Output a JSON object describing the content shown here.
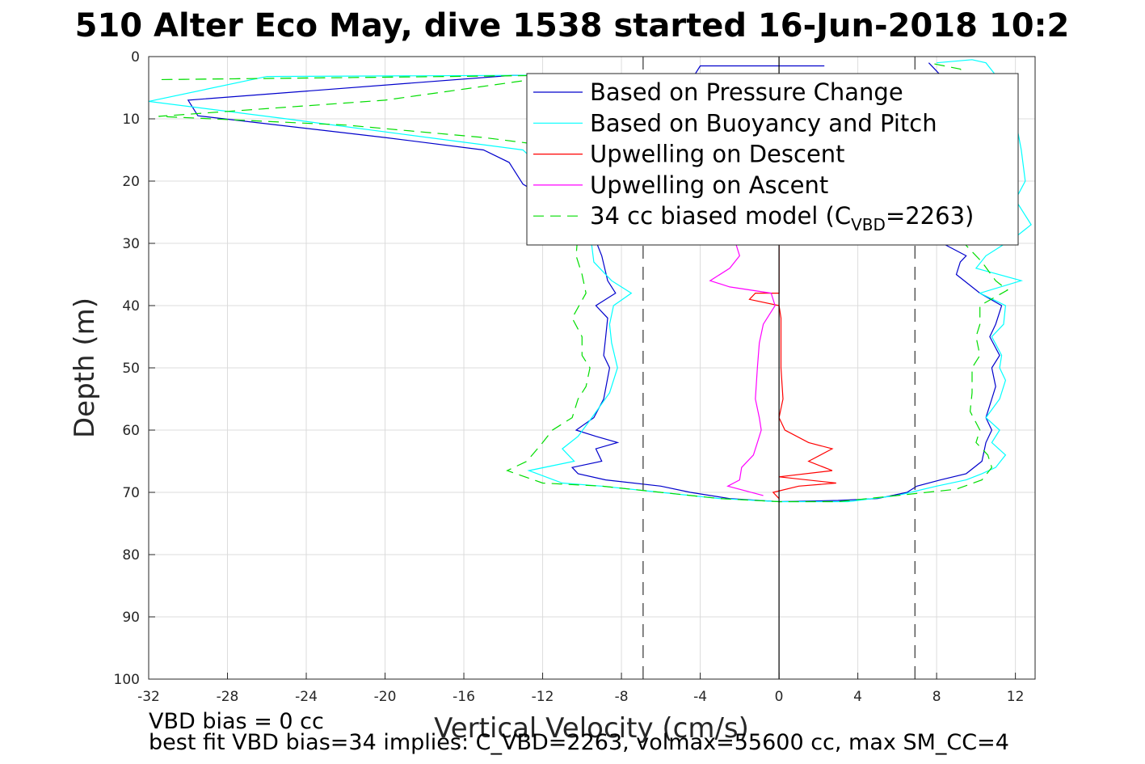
{
  "chart_data": {
    "type": "line",
    "title": "510 Alter Eco May, dive 1538 started 16-Jun-2018 10:2",
    "xlabel": "Vertical Velocity (cm/s)",
    "ylabel": "Depth (m)",
    "xlim": [
      -32,
      13
    ],
    "ylim": [
      0,
      100
    ],
    "y_reversed": true,
    "grid": true,
    "legend_position": "top-right",
    "x_ticks": [
      -32,
      -28,
      -24,
      -20,
      -16,
      -12,
      -8,
      -4,
      0,
      4,
      8,
      12
    ],
    "y_ticks": [
      0,
      10,
      20,
      30,
      40,
      50,
      60,
      70,
      80,
      90,
      100
    ],
    "reference_lines": [
      {
        "kind": "solid",
        "x": 0,
        "color": "#000000"
      },
      {
        "kind": "dashed",
        "x": -6.9,
        "color": "#333333"
      },
      {
        "kind": "dashed",
        "x": 6.9,
        "color": "#333333"
      }
    ],
    "series": [
      {
        "name": "Based on Pressure Change",
        "color": "#0000cc",
        "style": "solid",
        "points": [
          [
            2.3,
            1.5
          ],
          [
            -4,
            1.5
          ],
          [
            -4.3,
            3
          ],
          [
            -13.5,
            3
          ],
          [
            -30,
            7
          ],
          [
            -29.5,
            9.5
          ],
          [
            -20,
            13
          ],
          [
            -15,
            15
          ],
          [
            -13.7,
            17
          ],
          [
            -13,
            20.5
          ],
          [
            -12.2,
            22
          ],
          [
            -9.5,
            28
          ],
          [
            -9,
            32
          ],
          [
            -8.7,
            36
          ],
          [
            -8.3,
            38
          ],
          [
            -9.3,
            40
          ],
          [
            -8.7,
            42
          ],
          [
            -8.8,
            45
          ],
          [
            -8.9,
            48
          ],
          [
            -8.6,
            50
          ],
          [
            -8.9,
            55
          ],
          [
            -9.4,
            58
          ],
          [
            -10.3,
            60
          ],
          [
            -9.3,
            61
          ],
          [
            -8.2,
            62
          ],
          [
            -9.3,
            63
          ],
          [
            -9,
            65
          ],
          [
            -10.5,
            66
          ],
          [
            -10.2,
            67
          ],
          [
            -8.8,
            68
          ],
          [
            -6,
            69
          ],
          [
            -4.5,
            70
          ],
          [
            -2.5,
            71
          ],
          [
            0,
            71.5
          ],
          [
            3,
            71.3
          ],
          [
            5,
            71
          ],
          [
            6.5,
            70
          ],
          [
            7,
            69
          ],
          [
            8.2,
            68
          ],
          [
            9.5,
            67
          ],
          [
            10.3,
            65
          ],
          [
            10.5,
            62
          ],
          [
            10.8,
            60
          ],
          [
            10.5,
            58
          ],
          [
            10.8,
            55
          ],
          [
            11,
            53
          ],
          [
            10.8,
            50
          ],
          [
            11.2,
            48
          ],
          [
            10.7,
            45
          ],
          [
            11,
            43
          ],
          [
            11.3,
            40
          ],
          [
            10.2,
            38
          ],
          [
            9,
            35
          ],
          [
            9.2,
            33
          ],
          [
            9.5,
            32
          ],
          [
            8.3,
            30
          ],
          [
            8.2,
            28
          ],
          [
            8,
            25
          ],
          [
            8.2,
            20
          ],
          [
            8.5,
            15
          ],
          [
            8.2,
            10
          ],
          [
            8.1,
            5
          ],
          [
            8.2,
            3
          ],
          [
            7.6,
            1
          ]
        ]
      },
      {
        "name": "Based on Buoyancy and Pitch",
        "color": "#00ffff",
        "style": "solid",
        "points": [
          [
            -12.5,
            3
          ],
          [
            -26,
            3.2
          ],
          [
            -32,
            7.2
          ],
          [
            -25,
            10
          ],
          [
            -19,
            12.5
          ],
          [
            -13,
            15
          ],
          [
            -12,
            18
          ],
          [
            -11,
            22
          ],
          [
            -9.6,
            28
          ],
          [
            -9.4,
            33
          ],
          [
            -8.5,
            36
          ],
          [
            -7.5,
            38
          ],
          [
            -8.4,
            40
          ],
          [
            -8.6,
            43
          ],
          [
            -8.5,
            46
          ],
          [
            -8.2,
            50
          ],
          [
            -8.6,
            54
          ],
          [
            -9.5,
            58
          ],
          [
            -10.2,
            61
          ],
          [
            -11,
            63
          ],
          [
            -10.4,
            65
          ],
          [
            -12.7,
            66.5
          ],
          [
            -11,
            68.5
          ],
          [
            -9,
            69
          ],
          [
            -6,
            70
          ],
          [
            -3,
            71
          ],
          [
            0,
            71.5
          ],
          [
            3.5,
            71.5
          ],
          [
            6,
            70.5
          ],
          [
            8,
            69
          ],
          [
            9.5,
            68
          ],
          [
            10.3,
            67
          ],
          [
            11,
            66
          ],
          [
            11.5,
            64
          ],
          [
            10.8,
            62
          ],
          [
            11.2,
            60
          ],
          [
            10.5,
            58
          ],
          [
            11.2,
            55
          ],
          [
            11.5,
            52
          ],
          [
            11.2,
            50
          ],
          [
            11.3,
            48
          ],
          [
            10.8,
            45
          ],
          [
            11.4,
            43
          ],
          [
            11.5,
            40
          ],
          [
            10.2,
            38
          ],
          [
            12.3,
            36
          ],
          [
            10,
            34
          ],
          [
            10.5,
            32
          ],
          [
            12,
            29
          ],
          [
            12.8,
            27
          ],
          [
            12,
            23
          ],
          [
            12.5,
            20
          ],
          [
            12.3,
            15
          ],
          [
            12,
            10
          ],
          [
            11.5,
            5
          ],
          [
            10.5,
            1
          ],
          [
            9.8,
            0.5
          ],
          [
            8,
            1
          ]
        ]
      },
      {
        "name": "Upwelling on Descent",
        "color": "#ff0000",
        "style": "solid",
        "points": [
          [
            0,
            71
          ],
          [
            -0.3,
            70
          ],
          [
            1,
            69
          ],
          [
            2.9,
            68.5
          ],
          [
            0,
            67.5
          ],
          [
            2.7,
            66.5
          ],
          [
            1.5,
            65
          ],
          [
            2.7,
            63
          ],
          [
            1.5,
            62
          ],
          [
            0.3,
            60
          ],
          [
            0,
            58
          ],
          [
            0.2,
            55
          ],
          [
            0.1,
            50
          ],
          [
            0.1,
            46
          ],
          [
            0.1,
            42
          ],
          [
            0,
            40
          ],
          [
            -1.5,
            39
          ],
          [
            -1.2,
            38
          ],
          [
            0,
            38
          ],
          [
            0,
            35
          ],
          [
            0,
            30
          ]
        ]
      },
      {
        "name": "Upwelling on Ascent",
        "color": "#ff00ff",
        "style": "solid",
        "points": [
          [
            -0.8,
            70.5
          ],
          [
            -2.6,
            69
          ],
          [
            -2,
            68
          ],
          [
            -1.9,
            66
          ],
          [
            -1.3,
            64
          ],
          [
            -1.1,
            62
          ],
          [
            -0.9,
            60
          ],
          [
            -1,
            58
          ],
          [
            -1.2,
            55
          ],
          [
            -1.1,
            50
          ],
          [
            -1,
            46
          ],
          [
            -0.8,
            43
          ],
          [
            -0.2,
            40
          ],
          [
            -0.4,
            38
          ],
          [
            -2.5,
            37
          ],
          [
            -3.5,
            36
          ],
          [
            -2.5,
            34
          ],
          [
            -2,
            32
          ],
          [
            -2.2,
            30
          ]
        ]
      },
      {
        "name": "34 cc biased model (C<sub>VBD</sub>=2263)",
        "color": "#00dd00",
        "style": "dashed",
        "points": [
          [
            -11,
            3
          ],
          [
            -31.5,
            3.7
          ],
          [
            -11,
            3
          ],
          [
            -20,
            7
          ],
          [
            -31.5,
            9.6
          ],
          [
            -22,
            11
          ],
          [
            -15,
            13
          ],
          [
            -12.5,
            14
          ],
          [
            -11.5,
            20
          ],
          [
            -10.2,
            28
          ],
          [
            -10.3,
            32
          ],
          [
            -10,
            35
          ],
          [
            -9.8,
            38
          ],
          [
            -10.5,
            42
          ],
          [
            -10,
            45
          ],
          [
            -10,
            48
          ],
          [
            -9.6,
            50
          ],
          [
            -9.8,
            53
          ],
          [
            -10.2,
            55
          ],
          [
            -10.5,
            58
          ],
          [
            -11.5,
            60
          ],
          [
            -12,
            62
          ],
          [
            -12.8,
            65
          ],
          [
            -13.8,
            66.5
          ],
          [
            -12,
            68.5
          ],
          [
            -9,
            69
          ],
          [
            -6,
            70
          ],
          [
            -3,
            71
          ],
          [
            0,
            71.5
          ],
          [
            3,
            71.5
          ],
          [
            6,
            70.5
          ],
          [
            9,
            69.5
          ],
          [
            10.3,
            68
          ],
          [
            10.8,
            66
          ],
          [
            10.6,
            64
          ],
          [
            10,
            62
          ],
          [
            10.2,
            60
          ],
          [
            9.7,
            57
          ],
          [
            9.8,
            54
          ],
          [
            9.8,
            50
          ],
          [
            10.2,
            48
          ],
          [
            10,
            45
          ],
          [
            10.2,
            43
          ],
          [
            10.2,
            40
          ],
          [
            11.6,
            37.5
          ],
          [
            11,
            36
          ],
          [
            10.3,
            33
          ],
          [
            9.4,
            30
          ],
          [
            9.2,
            25
          ],
          [
            9.4,
            20
          ],
          [
            9.5,
            15
          ],
          [
            9.5,
            10
          ],
          [
            10,
            5
          ],
          [
            9.2,
            2
          ],
          [
            7.6,
            1
          ]
        ]
      }
    ]
  },
  "legend": {
    "entries": [
      {
        "text": "Based on Pressure Change"
      },
      {
        "text": "Based on Buoyancy and Pitch"
      },
      {
        "text": "Upwelling on Descent"
      },
      {
        "text": "Upwelling on Ascent"
      },
      {
        "text": "34 cc biased model (C",
        "sub": "VBD",
        "tail": "=2263)"
      }
    ]
  },
  "footer": {
    "line1": "VBD bias = 0 cc",
    "line2": "best fit VBD bias=34 implies: C_VBD=2263, volmax=55600 cc, max SM_CC=4"
  }
}
